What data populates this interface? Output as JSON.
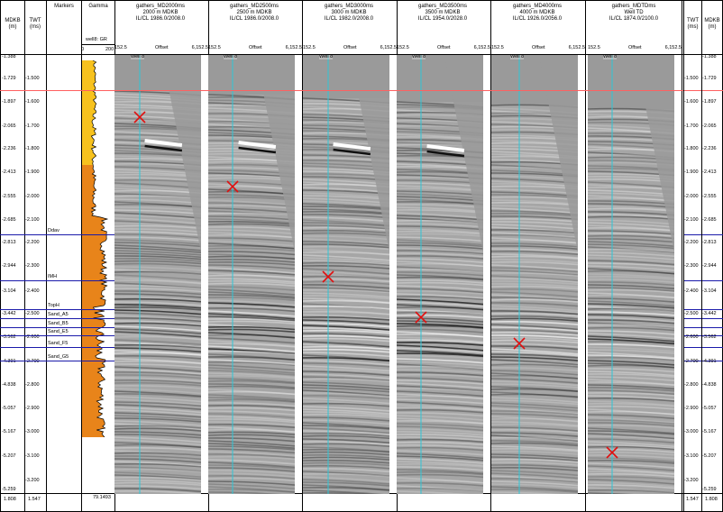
{
  "left_axis": {
    "md_header": "MDKB\n(m)",
    "twt_header": "TWT\n(ms)",
    "md_labels": [
      "1.388",
      "1.729",
      "1.897",
      "2.065",
      "2.236",
      "2.413",
      "2.555",
      "2.685",
      "2.813",
      "2.944",
      "3.104",
      "3.442",
      "3.562",
      "4.391",
      "4.838",
      "5.057",
      "5.167",
      "5.207",
      "5.259"
    ],
    "twt_labels": [
      "1.500",
      "1.600",
      "1.700",
      "1.800",
      "1.900",
      "2.000",
      "2.100",
      "2.200",
      "2.300",
      "2.400",
      "2.500",
      "2.600",
      "2.700",
      "2.800",
      "2.900",
      "3.000",
      "3.100",
      "3.200"
    ],
    "footer_md": "1.808",
    "footer_twt": "1.547"
  },
  "right_axis": {
    "twt_header": "TWT\n(ms)",
    "md_header": "MDKB\n(m)",
    "footer_twt": "1.547",
    "footer_md": "1.808"
  },
  "markers_track": {
    "header": "Markers",
    "labels": [
      "Ddav",
      "IMH",
      "TopH",
      "Sand_A5",
      "Sand_B5",
      "Sand_E5",
      "Sand_F5",
      "Sand_G5"
    ]
  },
  "gamma_track": {
    "header": "Gamma",
    "curve_label": "well8: GR",
    "scale_min": "0",
    "scale_max": "200",
    "footer_value": "79.1493"
  },
  "panels": [
    {
      "title": "gathers_MD2000ms",
      "line2": "2000 m MDKB",
      "line3": "IL/CL 1986.0/2008.0",
      "offset_left": "152.5",
      "offset_label": "Offset",
      "offset_right": "6,152.5",
      "well": "Well 8"
    },
    {
      "title": "gathers_MD2500ms",
      "line2": "2500 m MDKB",
      "line3": "IL/CL 1986.0/2008.0",
      "offset_left": "152.5",
      "offset_label": "Offset",
      "offset_right": "6,152.5",
      "well": "Well 8"
    },
    {
      "title": "gathers_MD3000ms",
      "line2": "3000 m MDKB",
      "line3": "IL/CL 1982.0/2008.0",
      "offset_left": "152.5",
      "offset_label": "Offset",
      "offset_right": "6,152.5",
      "well": "Well 8"
    },
    {
      "title": "gathers_MD3500ms",
      "line2": "3500 m MDKB",
      "line3": "IL/CL 1954.0/2028.0",
      "offset_left": "152.5",
      "offset_label": "Offset",
      "offset_right": "6,152.5",
      "well": "Well 8"
    },
    {
      "title": "gathers_MD4000ms",
      "line2": "4000 m MDKB",
      "line3": "IL/CL 1926.0/2056.0",
      "offset_left": "152.5",
      "offset_label": "Offset",
      "offset_right": "6,152.5",
      "well": "Well 8"
    },
    {
      "title": "gathers_MDTDms",
      "line2": "Well TD",
      "line3": "IL/CL 1874.0/2100.0",
      "offset_left": "152.5",
      "offset_label": "Offset",
      "offset_right": "6,152.5",
      "well": "Well 8"
    }
  ],
  "colors": {
    "gamma_fill_light": "#f7c21e",
    "gamma_fill_dark": "#e8841a",
    "marker_line": "#1a1aaa",
    "reference_line": "#ff6060",
    "well_line": "#2ec6d6",
    "x_mark": "#e01010"
  }
}
